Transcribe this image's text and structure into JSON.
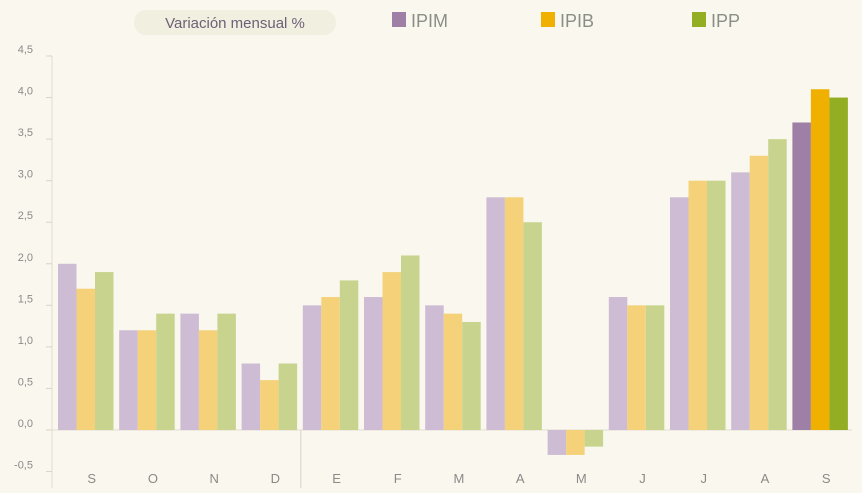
{
  "chart_data": {
    "type": "bar",
    "title": "Variación mensual %",
    "xlabel": "",
    "ylabel": "",
    "ylim": [
      -0.5,
      4.5
    ],
    "yticks": [
      "-0,5",
      "0,0",
      "0,5",
      "1,0",
      "1,5",
      "2,0",
      "2,5",
      "3,0",
      "3,5",
      "4,0",
      "4,5"
    ],
    "ytick_values": [
      -0.5,
      0,
      0.5,
      1,
      1.5,
      2,
      2.5,
      3,
      3.5,
      4,
      4.5
    ],
    "categories": [
      "S",
      "O",
      "N",
      "D",
      "E",
      "F",
      "M",
      "A",
      "M",
      "J",
      "J",
      "A",
      "S"
    ],
    "legend_position": "top",
    "series": [
      {
        "name": "IPIM",
        "color": "#cdbcd4",
        "highlight_color": "#9e7fa6",
        "values": [
          2.0,
          1.2,
          1.4,
          0.8,
          1.5,
          1.6,
          1.5,
          2.8,
          -0.3,
          1.6,
          2.8,
          3.1,
          3.7
        ]
      },
      {
        "name": "IPIB",
        "color": "#f5d27a",
        "highlight_color": "#f0b000",
        "values": [
          1.7,
          1.2,
          1.2,
          0.6,
          1.6,
          1.9,
          1.4,
          2.8,
          -0.3,
          1.5,
          3.0,
          3.3,
          4.1
        ]
      },
      {
        "name": "IPP",
        "color": "#c8d48e",
        "highlight_color": "#93ae22",
        "values": [
          1.9,
          1.4,
          1.4,
          0.8,
          1.8,
          2.1,
          1.3,
          2.5,
          -0.2,
          1.5,
          3.0,
          3.5,
          4.0
        ]
      }
    ],
    "highlighted_category_index": 12,
    "year_separator_after_index": 3
  }
}
